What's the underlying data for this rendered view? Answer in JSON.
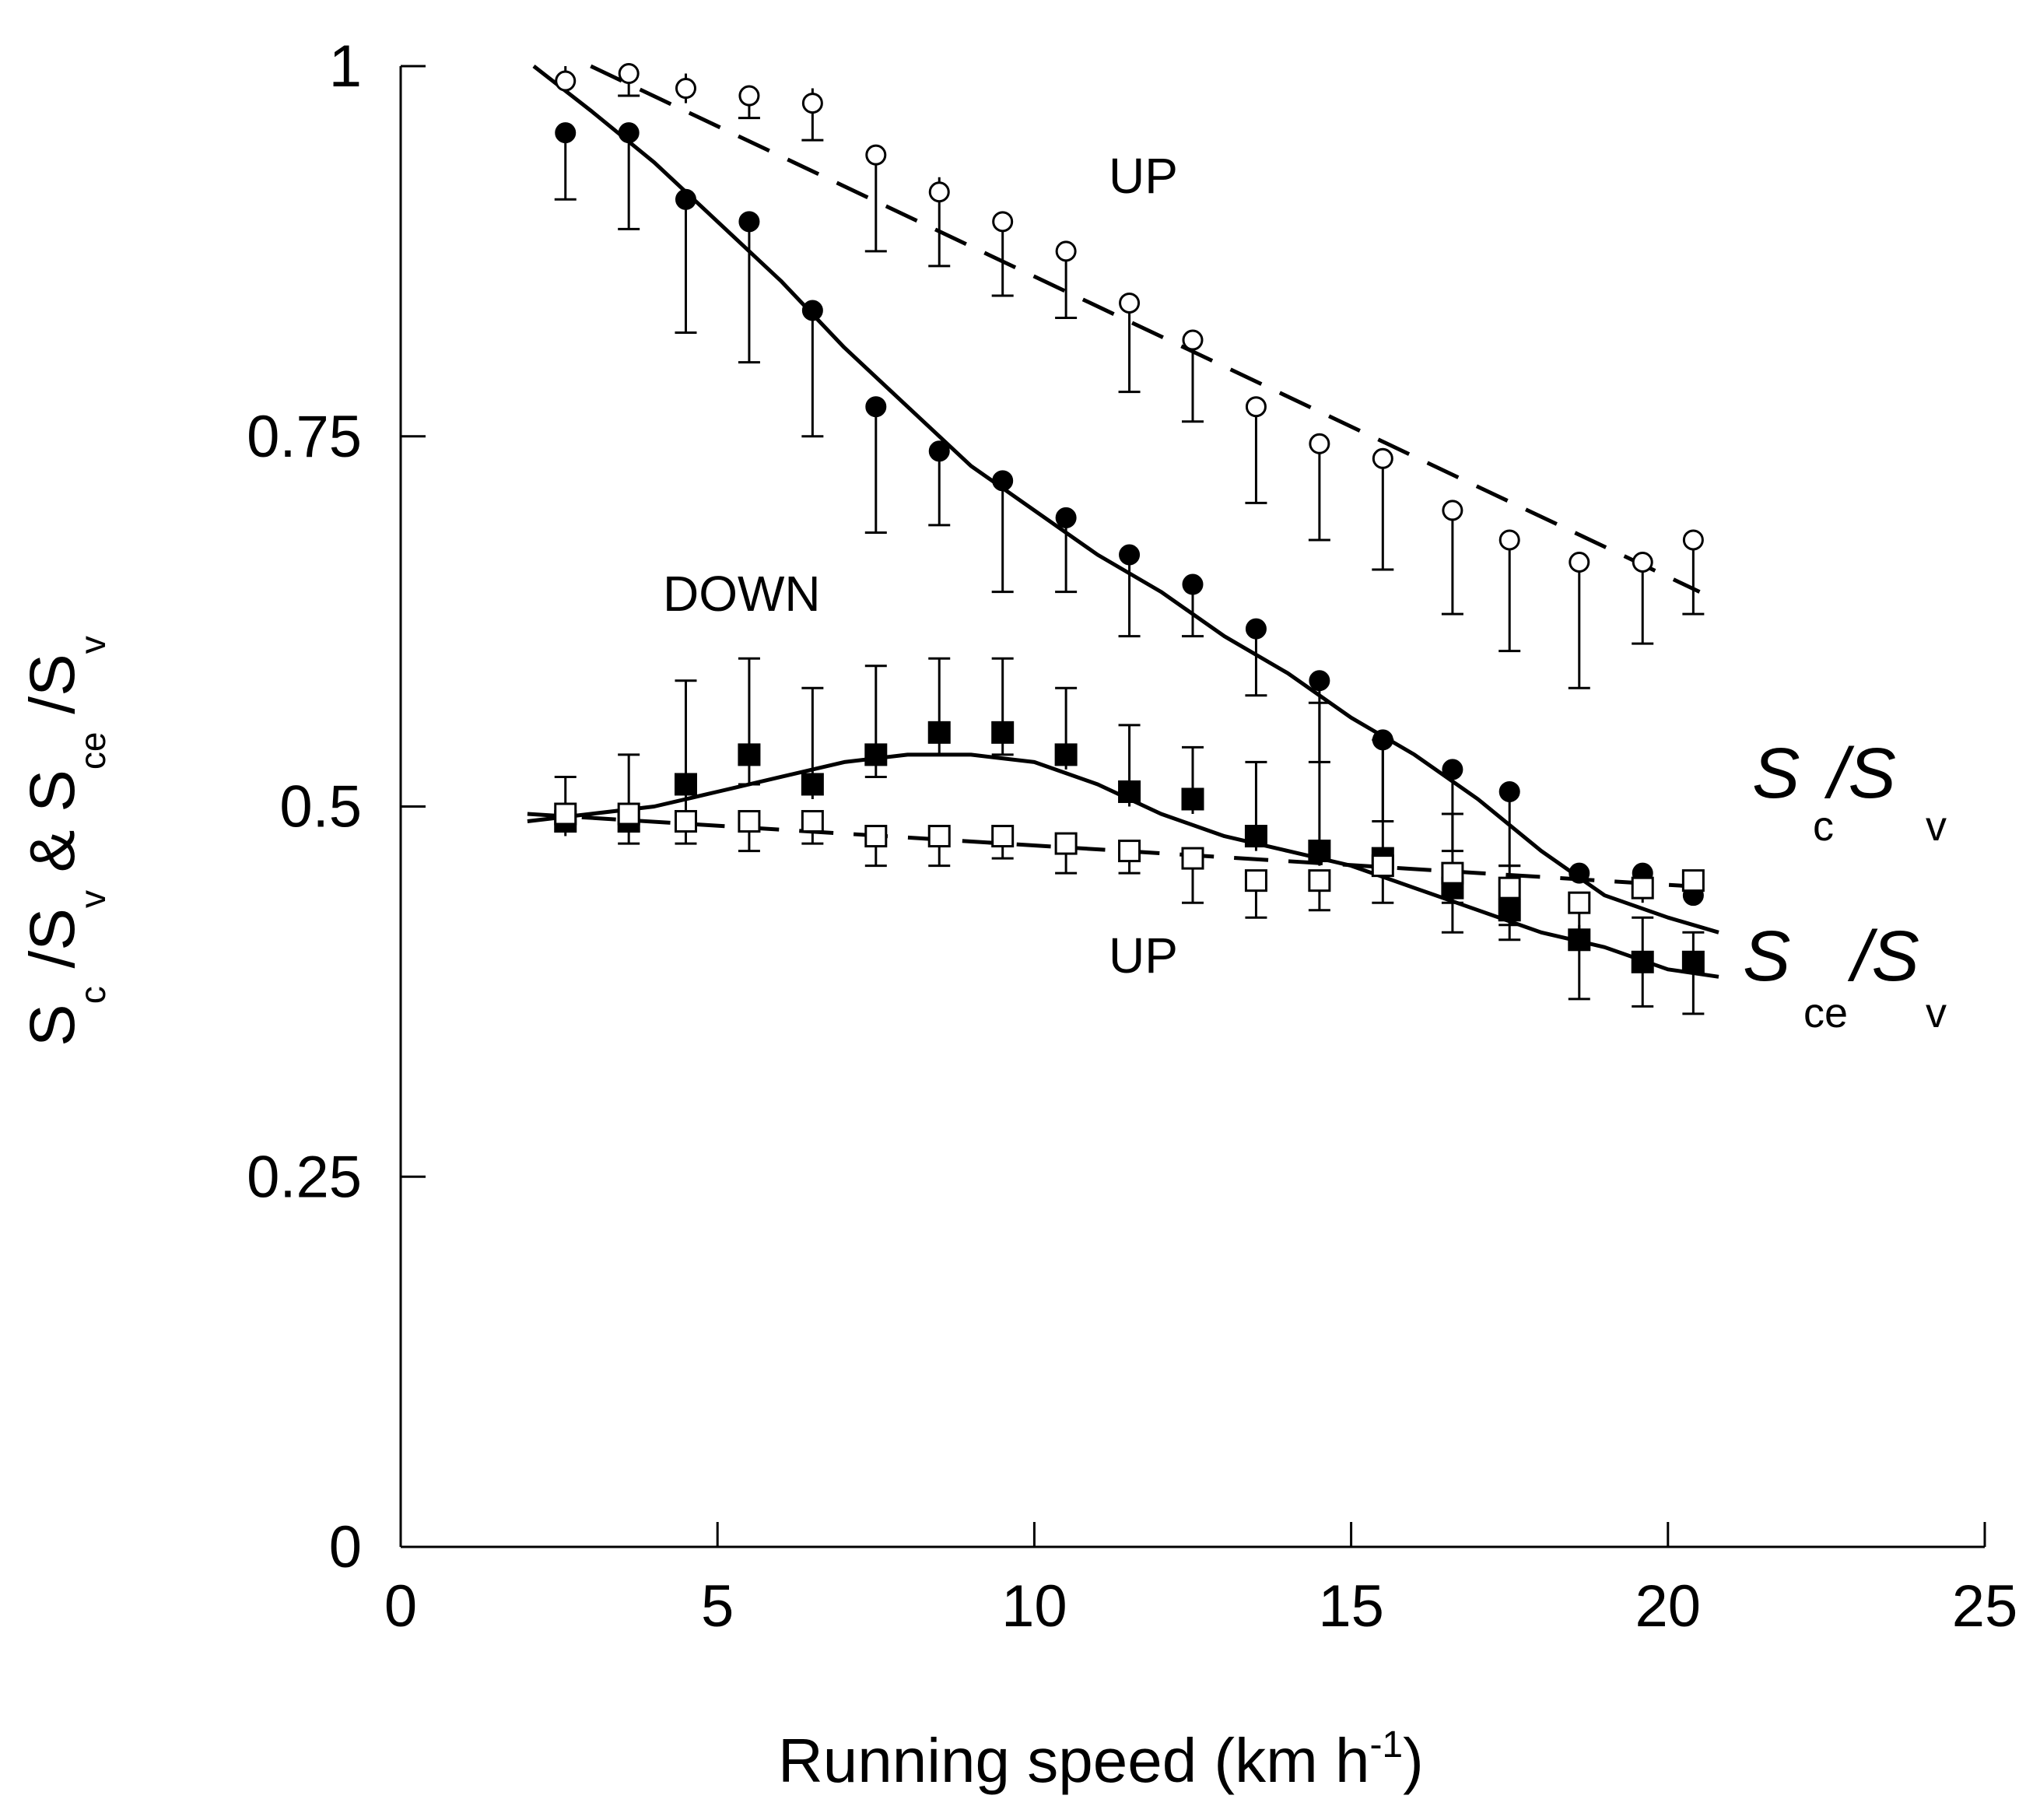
{
  "chart_data": {
    "type": "scatter",
    "xlabel": "Running speed (km h-1)",
    "xlabel_parts": {
      "main": "Running speed (km h",
      "sup": "-1",
      "close": ")"
    },
    "ylabel_parts": {
      "s1": "S",
      "c": "c",
      "slash1": " /S",
      "v1": "v",
      "amp": " & S",
      "ce": "ce",
      "slash2": " /S",
      "v2": "v"
    },
    "xlim": [
      0,
      25
    ],
    "ylim": [
      0,
      1
    ],
    "xticks": [
      0,
      5,
      10,
      15,
      20,
      25
    ],
    "xtick_labels": [
      "0",
      "5",
      "10",
      "15",
      "20",
      "25"
    ],
    "yticks": [
      0,
      0.25,
      0.5,
      0.75,
      1
    ],
    "ytick_labels": [
      "0",
      "0.25",
      "0.5",
      "0.75",
      "1"
    ],
    "grid": false,
    "annotations": {
      "up_top": "UP",
      "down": "DOWN",
      "up_bottom": "UP"
    },
    "legend_labels": {
      "sc_s": "S",
      "sc_sub": "c",
      "sc_slash": "/S",
      "sc_v": "v",
      "sce_s": "S",
      "sce_sub": "ce",
      "sce_slash": "/S",
      "sce_v": "v"
    },
    "x": [
      2.6,
      3.6,
      4.5,
      5.5,
      6.5,
      7.5,
      8.5,
      9.5,
      10.5,
      11.5,
      12.5,
      13.5,
      14.5,
      15.5,
      16.6,
      17.5,
      18.6,
      19.6,
      20.4
    ],
    "series": [
      {
        "name": "Sc/Sv UP",
        "marker": "open-circle",
        "values": [
          0.99,
          0.995,
          0.985,
          0.98,
          0.975,
          0.94,
          0.915,
          0.895,
          0.875,
          0.84,
          0.815,
          0.77,
          0.745,
          0.735,
          0.7,
          0.68,
          0.665,
          0.665,
          0.68
        ],
        "err_low": [
          0.0,
          0.015,
          0.01,
          0.015,
          0.025,
          0.065,
          0.05,
          0.05,
          0.045,
          0.06,
          0.055,
          0.065,
          0.065,
          0.075,
          0.07,
          0.075,
          0.085,
          0.055,
          0.05
        ],
        "err_high": [
          0.01,
          0.005,
          0.01,
          0.005,
          0.01,
          0.005,
          0.01,
          0.005,
          0.005,
          0.005,
          0.005,
          0.005,
          0.005,
          0.005,
          0.005,
          0.005,
          0.005,
          0.005,
          0.005
        ],
        "fit": {
          "style": "dashed",
          "x": [
            3.0,
            20.5
          ],
          "y": [
            1.0,
            0.645
          ]
        }
      },
      {
        "name": "Sc/Sv DOWN",
        "marker": "filled-circle",
        "values": [
          0.955,
          0.955,
          0.91,
          0.895,
          0.835,
          0.77,
          0.74,
          0.72,
          0.695,
          0.67,
          0.65,
          0.62,
          0.585,
          0.545,
          0.525,
          0.51,
          0.455,
          0.455,
          0.44
        ],
        "err_low": [
          0.045,
          0.065,
          0.09,
          0.095,
          0.085,
          0.085,
          0.05,
          0.075,
          0.05,
          0.055,
          0.035,
          0.045,
          0.055,
          0.055,
          0.055,
          0.05,
          0.0,
          0.0,
          0.0
        ],
        "err_high": [
          0.005,
          0.005,
          0.005,
          0.005,
          0.005,
          0.005,
          0.005,
          0.005,
          0.005,
          0.005,
          0.005,
          0.005,
          0.005,
          0.005,
          0.005,
          0.005,
          0.005,
          0.005,
          0.005
        ],
        "fit": {
          "style": "solid",
          "x": [
            2.1,
            3,
            4,
            5,
            6,
            7,
            8,
            9,
            10,
            11,
            12,
            13,
            14,
            15,
            16,
            17,
            18,
            19,
            20,
            20.8
          ],
          "y": [
            1.0,
            0.97,
            0.935,
            0.895,
            0.855,
            0.81,
            0.77,
            0.73,
            0.7,
            0.67,
            0.645,
            0.615,
            0.59,
            0.56,
            0.535,
            0.505,
            0.47,
            0.44,
            0.425,
            0.415
          ]
        }
      },
      {
        "name": "Sce/Sv DOWN",
        "marker": "filled-square",
        "values": [
          0.49,
          0.49,
          0.515,
          0.535,
          0.515,
          0.535,
          0.55,
          0.55,
          0.535,
          0.51,
          0.505,
          0.48,
          0.47,
          0.465,
          0.445,
          0.43,
          0.41,
          0.395,
          0.395
        ],
        "err_low": [
          0.01,
          0.015,
          0.02,
          0.02,
          0.01,
          0.015,
          0.015,
          0.015,
          0.01,
          0.01,
          0.01,
          0.01,
          0.01,
          0.01,
          0.03,
          0.02,
          0.04,
          0.03,
          0.035
        ],
        "err_high": [
          0.03,
          0.045,
          0.07,
          0.065,
          0.065,
          0.06,
          0.05,
          0.05,
          0.045,
          0.045,
          0.035,
          0.05,
          0.1,
          0.08,
          0.05,
          0.03,
          0.01,
          0.03,
          0.02
        ],
        "fit": {
          "style": "solid",
          "x": [
            2.0,
            3,
            4,
            5,
            6,
            7,
            8,
            9,
            10,
            11,
            12,
            13,
            14,
            15,
            16,
            17,
            18,
            19,
            20,
            20.8
          ],
          "y": [
            0.49,
            0.495,
            0.5,
            0.51,
            0.52,
            0.53,
            0.535,
            0.535,
            0.53,
            0.515,
            0.495,
            0.48,
            0.47,
            0.46,
            0.445,
            0.43,
            0.415,
            0.405,
            0.39,
            0.385
          ]
        }
      },
      {
        "name": "Sce/Sv UP",
        "marker": "open-square",
        "values": [
          0.495,
          0.495,
          0.49,
          0.49,
          0.49,
          0.48,
          0.48,
          0.48,
          0.475,
          0.47,
          0.465,
          0.45,
          0.45,
          0.46,
          0.455,
          0.445,
          0.435,
          0.445,
          0.45
        ],
        "err_low": [
          0.01,
          0.01,
          0.015,
          0.02,
          0.015,
          0.02,
          0.02,
          0.015,
          0.02,
          0.015,
          0.03,
          0.025,
          0.02,
          0.025,
          0.02,
          0.025,
          0.03,
          0.01,
          0.01
        ],
        "err_high": [
          0.005,
          0.005,
          0.005,
          0.005,
          0.005,
          0.005,
          0.005,
          0.005,
          0.005,
          0.005,
          0.005,
          0.005,
          0.005,
          0.005,
          0.005,
          0.005,
          0.005,
          0.005,
          0.005
        ],
        "fit": {
          "style": "dashed",
          "x": [
            2.0,
            20.8
          ],
          "y": [
            0.495,
            0.445
          ]
        }
      }
    ]
  }
}
